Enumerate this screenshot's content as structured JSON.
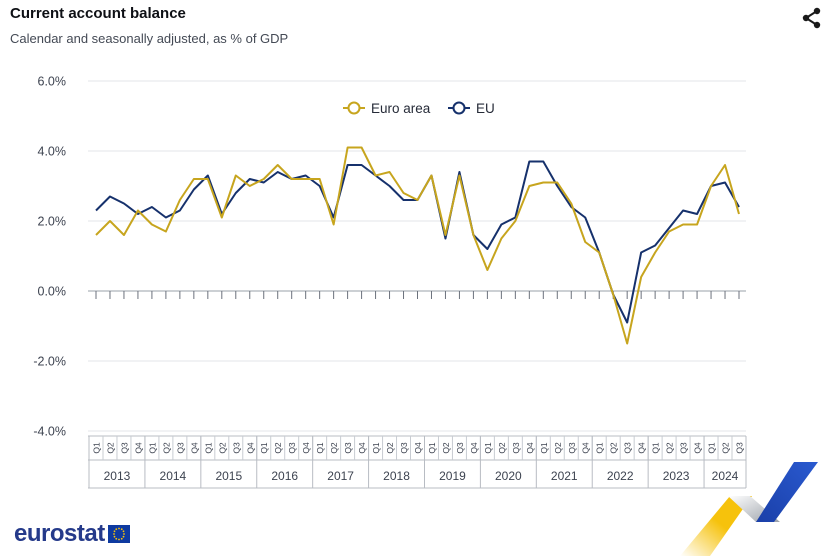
{
  "header": {
    "title": "Current account balance",
    "subtitle": "Calendar and seasonally adjusted, as % of GDP"
  },
  "footer": {
    "brand": "eurostat"
  },
  "icons": {
    "share": "share-icon",
    "eu_flag": "eu-flag-icon"
  },
  "colors": {
    "euro_area": "#c7a51e",
    "eu": "#16316c",
    "brand": "#253a8a",
    "accent_yellow": "#f6c20c"
  },
  "chart_data": {
    "type": "line",
    "title": "Current account balance",
    "subtitle": "Calendar and seasonally adjusted, as % of GDP",
    "xlabel": "",
    "ylabel": "",
    "ylim": [
      -4,
      6
    ],
    "yticks": [
      6,
      4,
      2,
      0,
      -2,
      -4
    ],
    "ytick_labels": [
      "6.0%",
      "4.0%",
      "2.0%",
      "0.0%",
      "-2.0%",
      "-4.0%"
    ],
    "grid": true,
    "legend": "top-center",
    "quarter_labels": [
      "Q1",
      "Q2",
      "Q3",
      "Q4"
    ],
    "years": [
      "2013",
      "2014",
      "2015",
      "2016",
      "2017",
      "2018",
      "2019",
      "2020",
      "2021",
      "2022",
      "2023",
      "2024"
    ],
    "last_year_quarters": 3,
    "series": [
      {
        "name": "Euro area",
        "color": "#c7a51e",
        "values": [
          1.6,
          2.0,
          1.6,
          2.3,
          1.9,
          1.7,
          2.6,
          3.2,
          3.2,
          2.1,
          3.3,
          3.0,
          3.2,
          3.6,
          3.2,
          3.2,
          3.2,
          1.9,
          4.1,
          4.1,
          3.3,
          3.4,
          2.8,
          2.6,
          3.3,
          1.6,
          3.3,
          1.6,
          0.6,
          1.5,
          2.0,
          3.0,
          3.1,
          3.1,
          2.5,
          1.4,
          1.1,
          -0.1,
          -1.5,
          0.4,
          1.1,
          1.7,
          1.9,
          1.9,
          3.0,
          3.6,
          2.2
        ]
      },
      {
        "name": "EU",
        "color": "#16316c",
        "values": [
          2.3,
          2.7,
          2.5,
          2.2,
          2.4,
          2.1,
          2.3,
          2.9,
          3.3,
          2.2,
          2.8,
          3.2,
          3.1,
          3.4,
          3.2,
          3.3,
          3.0,
          2.1,
          3.6,
          3.6,
          3.3,
          3.0,
          2.6,
          2.6,
          3.3,
          1.5,
          3.4,
          1.6,
          1.2,
          1.9,
          2.1,
          3.7,
          3.7,
          3.0,
          2.4,
          2.1,
          1.1,
          -0.1,
          -0.9,
          1.1,
          1.3,
          1.8,
          2.3,
          2.2,
          3.0,
          3.1,
          2.4
        ]
      }
    ]
  }
}
